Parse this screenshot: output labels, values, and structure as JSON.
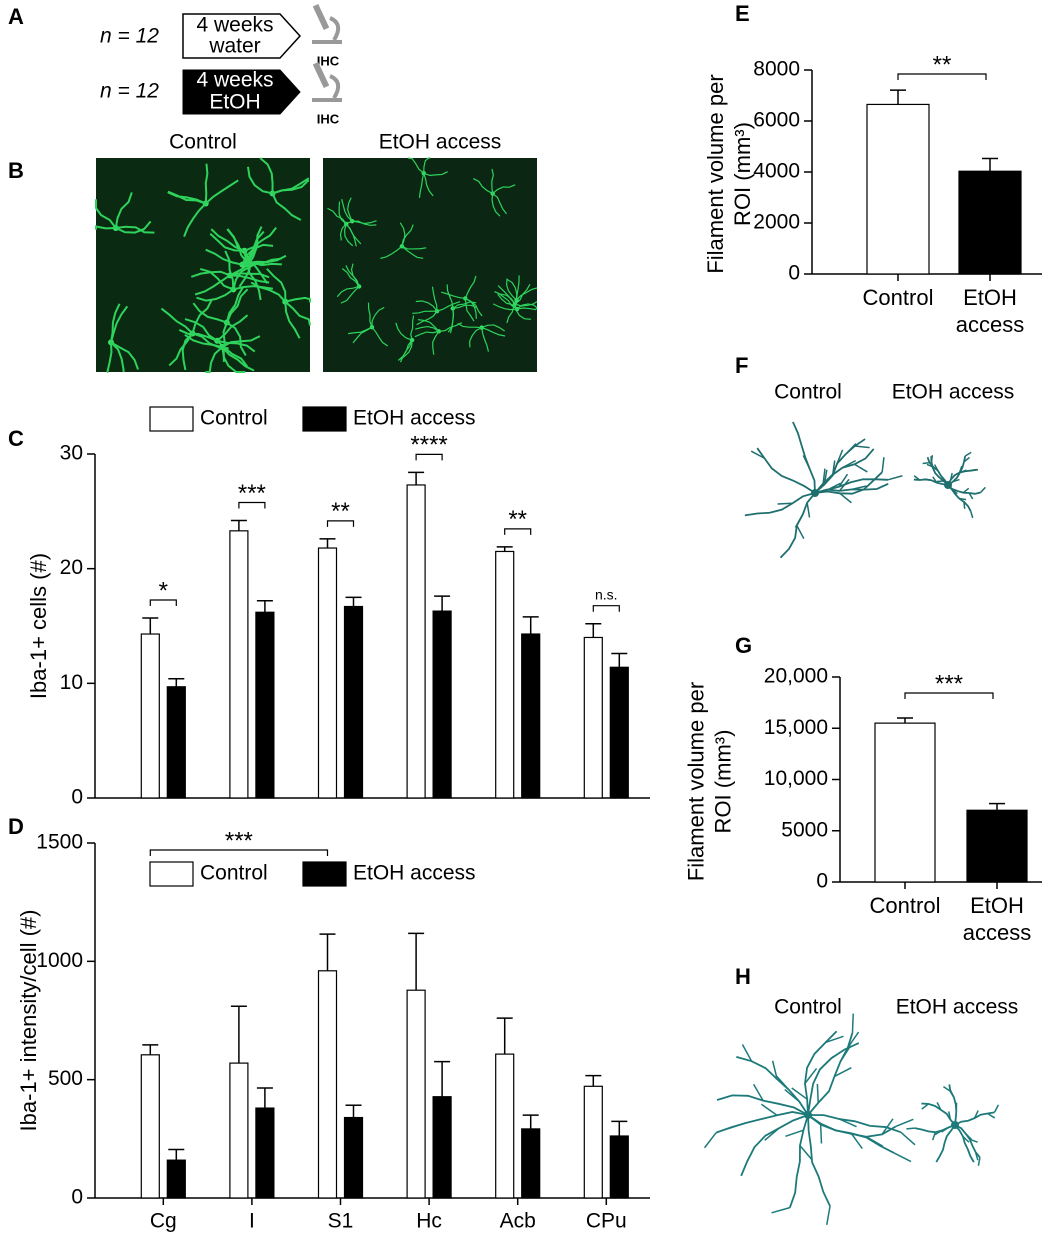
{
  "panel_labels": [
    "A",
    "B",
    "C",
    "D",
    "E",
    "F",
    "G",
    "H"
  ],
  "panel_a": {
    "rows": [
      {
        "n": "n = 12",
        "lines": [
          "4 weeks",
          "water"
        ]
      },
      {
        "n": "n = 12",
        "lines": [
          "4 weeks",
          "EtOH"
        ]
      }
    ],
    "readout": "IHC"
  },
  "panel_b": {
    "titles": [
      "Control",
      "EtOH access"
    ]
  },
  "panel_f": {
    "titles": [
      "Control",
      "EtOH access"
    ]
  },
  "panel_h": {
    "titles": [
      "Control",
      "EtOH access"
    ]
  },
  "chart_data": [
    {
      "type": "bar",
      "y_label": "Iba-1+ cells (#)",
      "ylim": [
        0,
        30
      ],
      "yticks": [
        0,
        10,
        20,
        30
      ],
      "series": [
        {
          "name": "Control",
          "color": "#ffffff",
          "values": [
            14.3,
            23.3,
            21.8,
            27.3,
            21.5,
            14.0
          ],
          "errors": [
            1.4,
            0.9,
            0.8,
            1.1,
            0.4,
            1.2
          ]
        },
        {
          "name": "EtOH access",
          "color": "#000000",
          "values": [
            9.7,
            16.2,
            16.7,
            16.3,
            14.3,
            11.4
          ],
          "errors": [
            0.7,
            1.0,
            0.8,
            1.3,
            1.5,
            1.2
          ]
        }
      ],
      "annotations": [
        "*",
        "***",
        "**",
        "****",
        "**",
        "n.s."
      ]
    },
    {
      "type": "bar",
      "y_label": "Iba-1+ intensity/cell (#)",
      "categories": [
        "Cg",
        "I",
        "S1",
        "Hc",
        "Acb",
        "CPu"
      ],
      "ylim": [
        0,
        1500
      ],
      "yticks": [
        0,
        500,
        1000,
        1500
      ],
      "series": [
        {
          "name": "Control",
          "color": "#ffffff",
          "values": [
            605,
            570,
            960,
            878,
            608,
            472
          ],
          "errors": [
            42,
            240,
            155,
            240,
            152,
            45
          ]
        },
        {
          "name": "EtOH access",
          "color": "#000000",
          "values": [
            160,
            380,
            340,
            428,
            292,
            262
          ],
          "errors": [
            45,
            85,
            52,
            148,
            58,
            62
          ]
        }
      ],
      "annotation": "***"
    },
    {
      "type": "bar",
      "y_label": "Filament volume per ROI (mm³)",
      "categories": [
        "Control",
        "EtOH access"
      ],
      "values": [
        6650,
        4030
      ],
      "errors": [
        560,
        500
      ],
      "colors": [
        "#ffffff",
        "#000000"
      ],
      "ylim": [
        0,
        8000
      ],
      "yticks": [
        0,
        2000,
        4000,
        6000,
        8000
      ],
      "annotation": "**"
    },
    {
      "type": "bar",
      "y_label": "Filament volume per ROI (mm³)",
      "categories": [
        "Control",
        "EtOH access"
      ],
      "values": [
        15500,
        7000
      ],
      "errors": [
        500,
        650
      ],
      "colors": [
        "#ffffff",
        "#000000"
      ],
      "ylim": [
        0,
        20000
      ],
      "yticks": [
        0,
        5000,
        {
          "value": 10000,
          "label": "10,000"
        },
        {
          "value": 15000,
          "label": "15,000"
        },
        {
          "value": 20000,
          "label": "20,000"
        }
      ],
      "annotation": "***"
    }
  ]
}
